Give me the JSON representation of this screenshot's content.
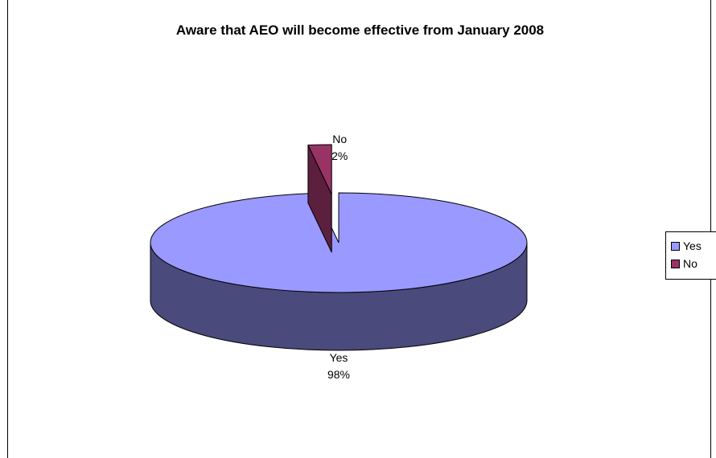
{
  "chart_data": {
    "type": "pie",
    "title": "Aware that AEO will become effective from January 2008",
    "slices": [
      {
        "label": "Yes",
        "value": 98,
        "value_label": "98%",
        "color": "#9999ff",
        "side_color": "#4a4a7d"
      },
      {
        "label": "No",
        "value": 2,
        "value_label": "2%",
        "color": "#993366",
        "side_color": "#5c1f3d"
      }
    ],
    "legend": {
      "position": "right",
      "entries": [
        "Yes",
        "No"
      ]
    },
    "style": "3d-exploded"
  }
}
